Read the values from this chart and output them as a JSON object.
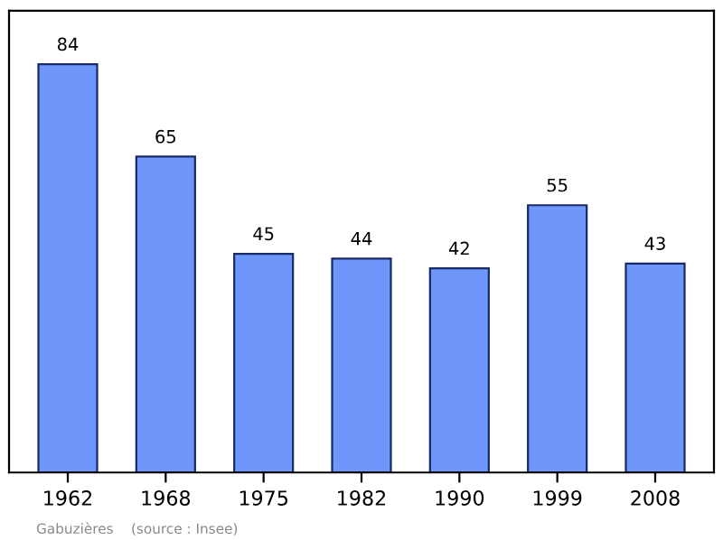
{
  "chart_data": {
    "type": "bar",
    "categories": [
      "1962",
      "1968",
      "1975",
      "1982",
      "1990",
      "1999",
      "2008"
    ],
    "values": [
      84,
      65,
      45,
      44,
      42,
      55,
      43
    ],
    "color": "#6f96fa",
    "ylim": [
      0,
      95
    ],
    "data_labels": true,
    "grid": false,
    "legend": false,
    "annotations": [
      "Gabuzières    (source : Insee)"
    ]
  }
}
